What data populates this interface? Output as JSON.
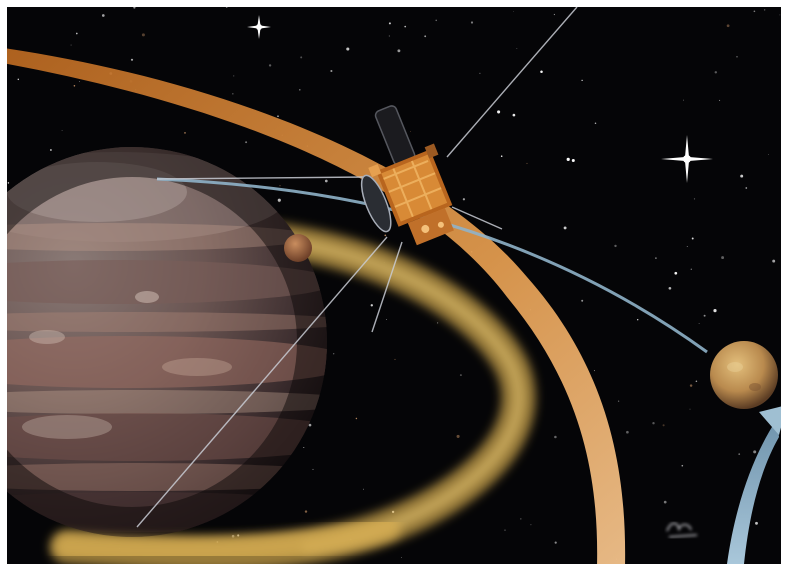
{
  "scene": {
    "subject": "spacecraft",
    "background_color": "#050507",
    "planet_colors": [
      "#5a4a4a",
      "#8a6f63",
      "#b89a8a",
      "#3c2f30"
    ],
    "orbit_color": "#d9873a",
    "torus_color": "#c9a24a",
    "arrow_color": "#8fb3c9",
    "moon_colors": [
      "#c79a52",
      "#b87a4a"
    ],
    "signature_text": "HARDY"
  }
}
